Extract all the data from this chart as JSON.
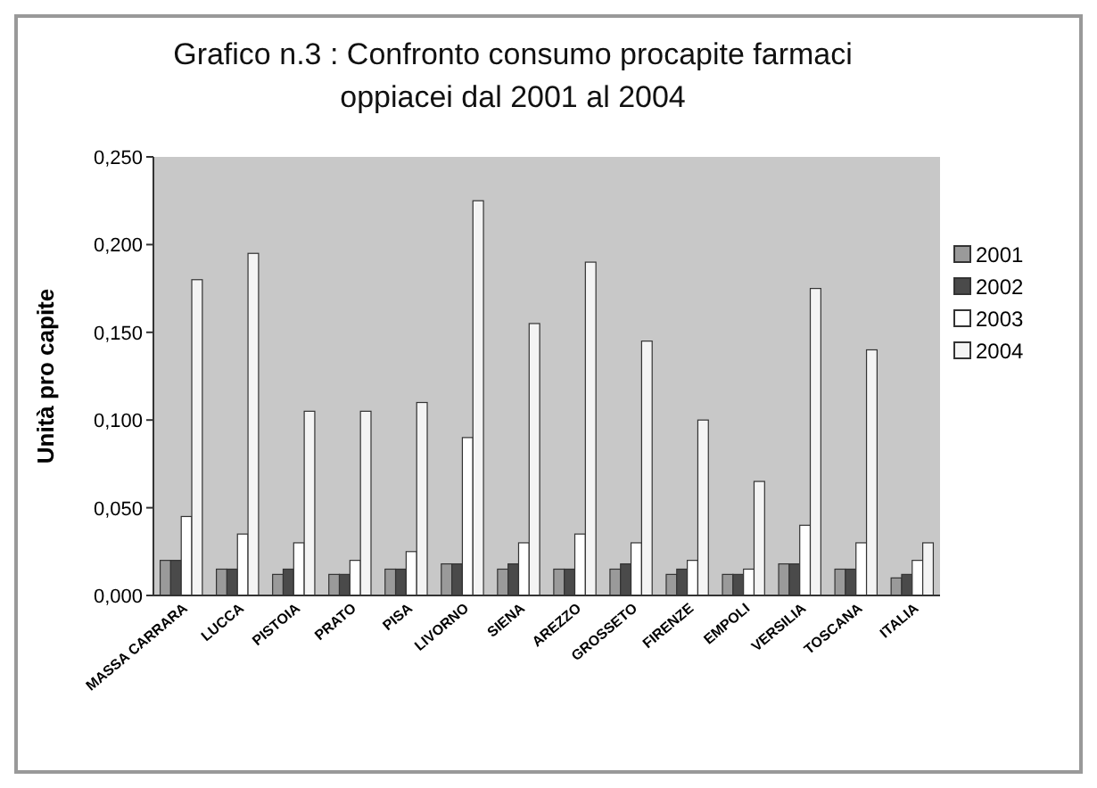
{
  "chart_data": {
    "type": "bar",
    "title": "Grafico n.3 : Confronto consumo procapite farmaci oppiacei dal 2001 al 2004",
    "ylabel": "Unità pro capite",
    "categories": [
      "MASSA CARRARA",
      "LUCCA",
      "PISTOIA",
      "PRATO",
      "PISA",
      "LIVORNO",
      "SIENA",
      "AREZZO",
      "GROSSETO",
      "FIRENZE",
      "EMPOLI",
      "VERSILIA",
      "TOSCANA",
      "ITALIA"
    ],
    "series": [
      {
        "name": "2001",
        "color": "#9a9a9a",
        "values": [
          0.02,
          0.015,
          0.012,
          0.012,
          0.015,
          0.018,
          0.015,
          0.015,
          0.015,
          0.012,
          0.012,
          0.018,
          0.015,
          0.01
        ]
      },
      {
        "name": "2002",
        "color": "#4a4a4a",
        "values": [
          0.02,
          0.015,
          0.015,
          0.012,
          0.015,
          0.018,
          0.018,
          0.015,
          0.018,
          0.015,
          0.012,
          0.018,
          0.015,
          0.012
        ]
      },
      {
        "name": "2003",
        "color": "#ffffff",
        "values": [
          0.045,
          0.035,
          0.03,
          0.02,
          0.025,
          0.09,
          0.03,
          0.035,
          0.03,
          0.02,
          0.015,
          0.04,
          0.03,
          0.02
        ]
      },
      {
        "name": "2004",
        "color": "#f4f4f4",
        "values": [
          0.18,
          0.195,
          0.105,
          0.105,
          0.11,
          0.225,
          0.155,
          0.19,
          0.145,
          0.1,
          0.065,
          0.175,
          0.14,
          0.03
        ]
      }
    ],
    "ylim": [
      0,
      0.25
    ],
    "yticks": [
      {
        "value": 0,
        "label": "0,000"
      },
      {
        "value": 0.05,
        "label": "0,050"
      },
      {
        "value": 0.1,
        "label": "0,100"
      },
      {
        "value": 0.15,
        "label": "0,150"
      },
      {
        "value": 0.2,
        "label": "0,200"
      },
      {
        "value": 0.25,
        "label": "0,250"
      }
    ],
    "legend": "right"
  }
}
